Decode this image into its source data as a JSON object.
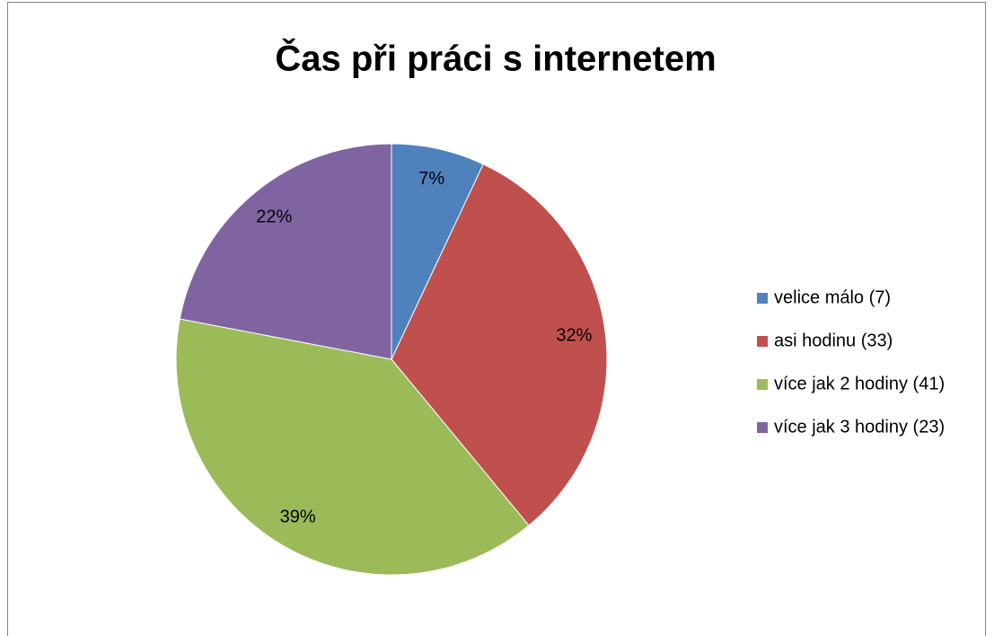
{
  "chart_data": {
    "type": "pie",
    "title": "Čas při práci s internetem",
    "categories": [
      "velice málo (7)",
      "asi hodinu (33)",
      "více jak 2 hodiny (41)",
      "více jak 3 hodiny (23)"
    ],
    "values": [
      7,
      32,
      39,
      22
    ],
    "value_labels": [
      "7%",
      "32%",
      "39%",
      "22%"
    ],
    "colors": [
      "#4f81bd",
      "#c0504d",
      "#9bbb59",
      "#8064a2"
    ],
    "legend": "right"
  }
}
